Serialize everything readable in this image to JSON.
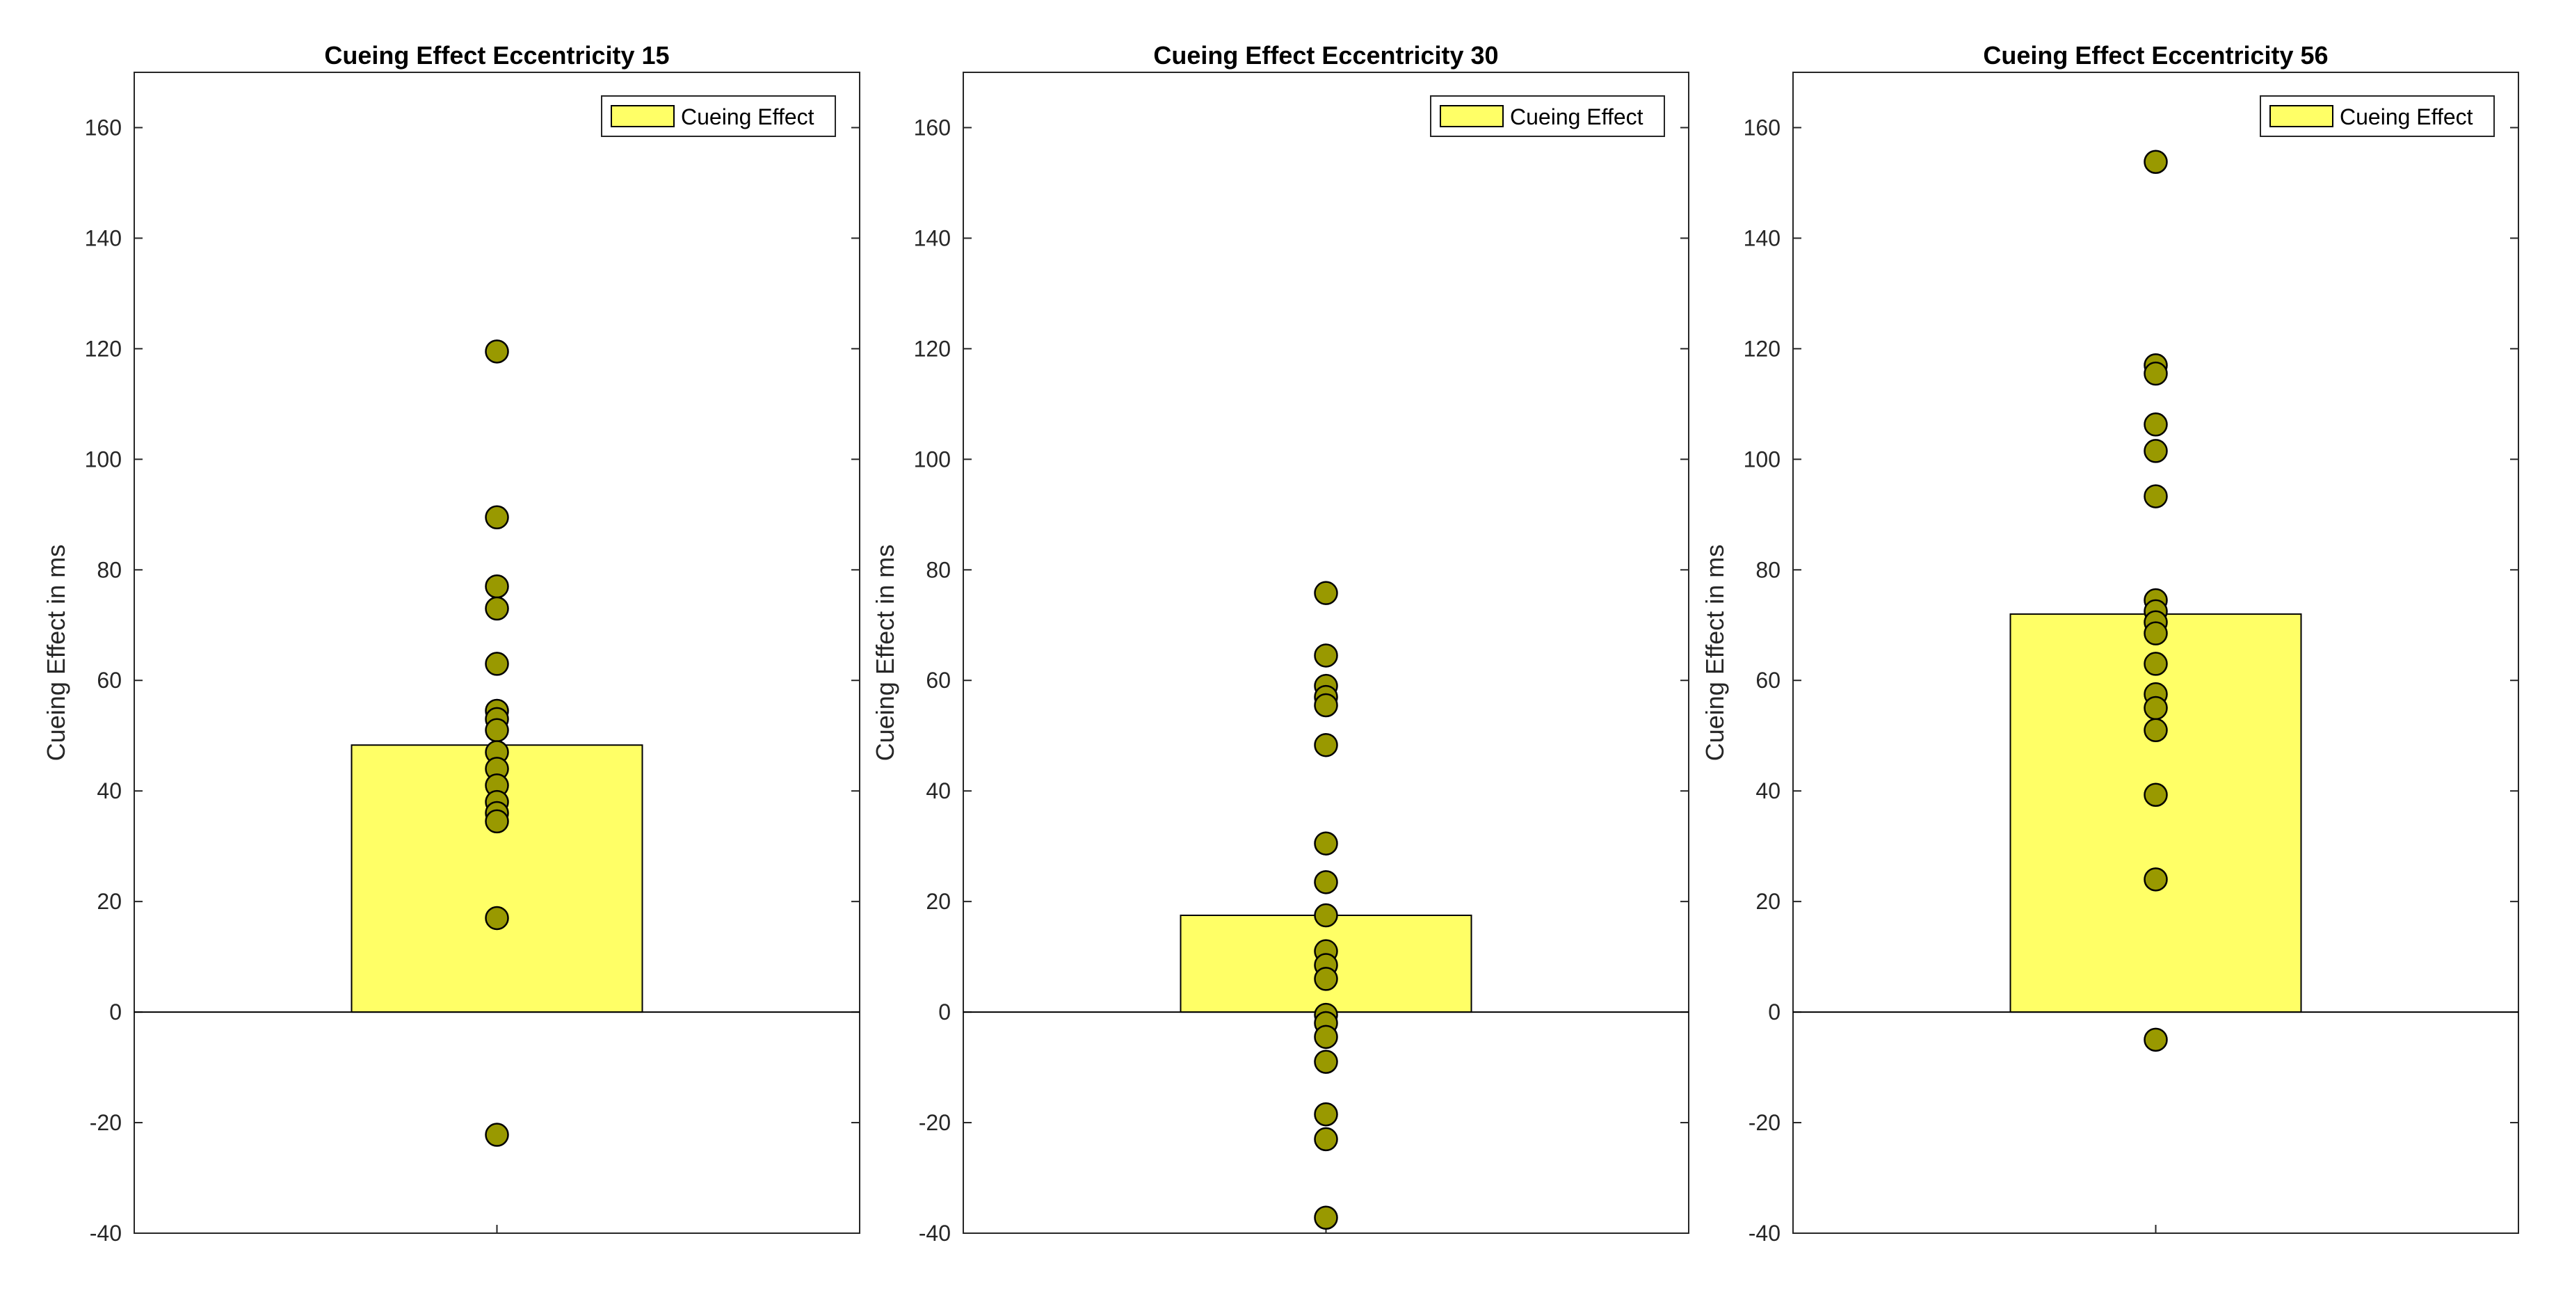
{
  "chart_data": [
    {
      "type": "bar",
      "title": "Cueing Effect Eccentricity 15",
      "ylabel": "Cueing Effect in ms",
      "xlabel": "",
      "ylim": [
        -40,
        170
      ],
      "yticks": [
        -40,
        -20,
        0,
        20,
        40,
        60,
        80,
        100,
        120,
        140,
        160
      ],
      "bar_value": 48.3,
      "legend": [
        "Cueing Effect"
      ],
      "legend_position": "top-right",
      "points": [
        119.5,
        89.5,
        77,
        73,
        63,
        54.5,
        53,
        51,
        47,
        44,
        41,
        38,
        36,
        34.5,
        17,
        -22.2
      ]
    },
    {
      "type": "bar",
      "title": "Cueing Effect Eccentricity 30",
      "ylabel": "Cueing Effect in ms",
      "xlabel": "",
      "ylim": [
        -40,
        170
      ],
      "yticks": [
        -40,
        -20,
        0,
        20,
        40,
        60,
        80,
        100,
        120,
        140,
        160
      ],
      "bar_value": 17.5,
      "legend": [
        "Cueing Effect"
      ],
      "legend_position": "top-right",
      "points": [
        75.8,
        64.5,
        59,
        57,
        55.5,
        48.3,
        30.5,
        23.5,
        17.5,
        11,
        8.5,
        6,
        -0.5,
        -2,
        -4.5,
        -9,
        -18.5,
        -23,
        -37.2
      ]
    },
    {
      "type": "bar",
      "title": "Cueing Effect Eccentricity 56",
      "ylabel": "Cueing Effect in ms",
      "xlabel": "",
      "ylim": [
        -40,
        170
      ],
      "yticks": [
        -40,
        -20,
        0,
        20,
        40,
        60,
        80,
        100,
        120,
        140,
        160
      ],
      "bar_value": 72,
      "legend": [
        "Cueing Effect"
      ],
      "legend_position": "top-right",
      "points": [
        153.8,
        117,
        115.5,
        106.3,
        101.5,
        93.3,
        74.5,
        72.5,
        70.5,
        68.5,
        63,
        57.5,
        55,
        51,
        39.3,
        24,
        -5
      ]
    }
  ],
  "colors": {
    "bar_fill": "#ffff66",
    "point_fill": "#999900",
    "edge": "#000000",
    "tick_text": "#262626"
  }
}
